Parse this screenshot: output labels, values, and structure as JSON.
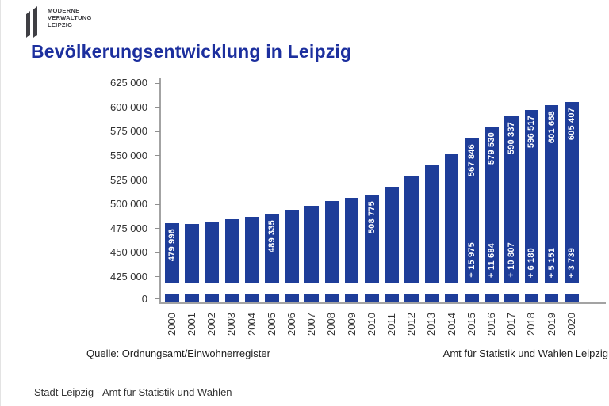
{
  "logo": {
    "lines": [
      "MODERNE",
      "VERWALTUNG",
      "LEIPZIG"
    ]
  },
  "title": "Bevölkerungsentwicklung in Leipzig",
  "source": {
    "left": "Quelle: Ordnungsamt/Einwohnerregister",
    "right": "Amt für Statistik und Wahlen Leipzig"
  },
  "page_footer": "Stadt Leipzig  -  Amt für Statistik und Wahlen",
  "colors": {
    "bar": "#1e3d99",
    "title_blue": "#1c2f9e",
    "axis_gray": "#a3a3a3",
    "text_dark": "#333333",
    "bar_label": "#ffffff"
  },
  "chart_data": {
    "type": "bar",
    "title": "Bevölkerungsentwicklung in Leipzig",
    "categories": [
      "2000",
      "2001",
      "2002",
      "2003",
      "2004",
      "2005",
      "2006",
      "2007",
      "2008",
      "2009",
      "2010",
      "2011",
      "2012",
      "2013",
      "2014",
      "2015",
      "2016",
      "2017",
      "2018",
      "2019",
      "2020"
    ],
    "values": [
      479996,
      479000,
      481500,
      484000,
      486500,
      489335,
      494000,
      498000,
      503000,
      506500,
      508775,
      517500,
      529000,
      540000,
      551871,
      567846,
      579530,
      590337,
      596517,
      601668,
      605407
    ],
    "value_labels": [
      "479 996",
      null,
      null,
      null,
      null,
      "489 335",
      null,
      null,
      null,
      null,
      "508 775",
      null,
      null,
      null,
      null,
      "567 846",
      "579 530",
      "590 337",
      "596 517",
      "601 668",
      "605 407"
    ],
    "delta_labels": [
      null,
      null,
      null,
      null,
      null,
      null,
      null,
      null,
      null,
      null,
      null,
      null,
      null,
      null,
      null,
      "+ 15 975",
      "+ 11 684",
      "+ 10 807",
      "+ 6 180",
      "+ 5 151",
      "+ 3 739"
    ],
    "yticks": [
      {
        "label": "625 000",
        "value": 625000
      },
      {
        "label": "600 000",
        "value": 600000
      },
      {
        "label": "575 000",
        "value": 575000
      },
      {
        "label": "550 000",
        "value": 550000
      },
      {
        "label": "525 000",
        "value": 525000
      },
      {
        "label": "500 000",
        "value": 500000
      },
      {
        "label": "475 000",
        "value": 475000
      },
      {
        "label": "450 000",
        "value": 450000
      },
      {
        "label": "425 000",
        "value": 425000
      },
      {
        "label": "0",
        "value": 0
      }
    ],
    "ylim": [
      418000,
      631000
    ],
    "axis_break": true,
    "grid": false,
    "legend": "none",
    "xlabel": "",
    "ylabel": ""
  }
}
